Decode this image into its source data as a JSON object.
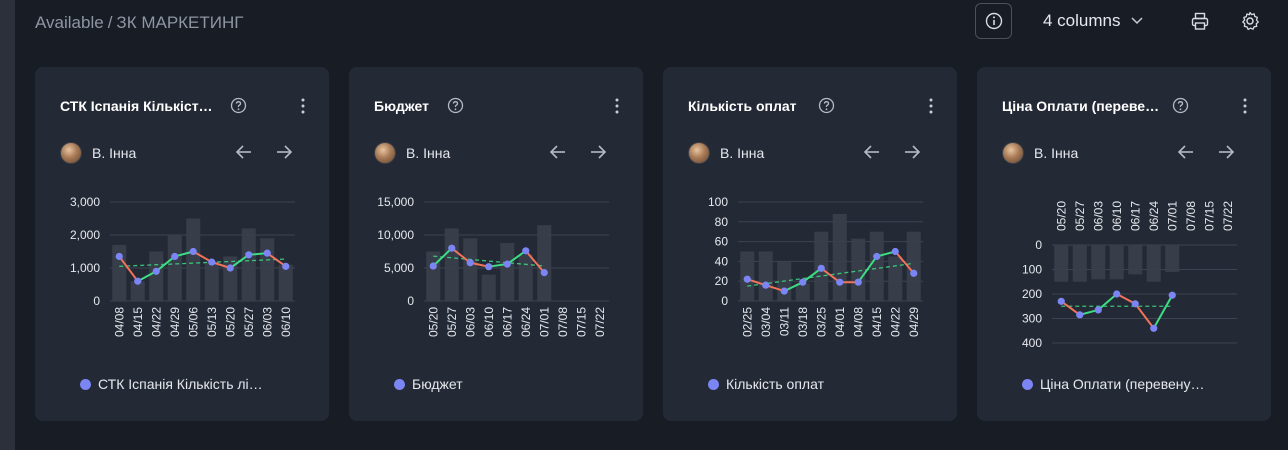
{
  "breadcrumb": {
    "parent": "Available",
    "separator": "/",
    "current": "ЗК МАРКЕТИНГ"
  },
  "toolbar": {
    "columns_label": "4 columns"
  },
  "colors": {
    "background": "#181c25",
    "card": "#242a35",
    "up": "#3ddc84",
    "down": "#f0735a",
    "point": "#7b86f4",
    "bar": "#3a3f4b",
    "grid": "#3d4350"
  },
  "cards": [
    {
      "title": "СТК Іспанія Кількість лі…",
      "author": "В. Інна",
      "legend": "СТК Іспанія Кількість лі…",
      "chart_data": {
        "type": "line",
        "categories": [
          "04/08",
          "04/15",
          "04/22",
          "04/29",
          "05/06",
          "05/13",
          "05/20",
          "05/27",
          "06/03",
          "06/10"
        ],
        "series": [
          {
            "name": "СТК Іспанія Кількість лі…",
            "values": [
              1350,
              600,
              900,
              1350,
              1500,
              1180,
              1000,
              1400,
              1450,
              1050
            ]
          }
        ],
        "bars": [
          1700,
          600,
          1500,
          2000,
          2500,
          1200,
          1350,
          2200,
          1900,
          1100
        ],
        "trend": [
          1050,
          1270
        ],
        "y_ticks": [
          "3,000",
          "2,000",
          "1,000",
          "0"
        ],
        "ylim": [
          0,
          3000
        ]
      }
    },
    {
      "title": "Бюджет",
      "author": "В. Інна",
      "legend": "Бюджет",
      "chart_data": {
        "type": "line",
        "categories": [
          "05/20",
          "05/27",
          "06/03",
          "06/10",
          "06/17",
          "06/24",
          "07/01",
          "07/08",
          "07/15",
          "07/22"
        ],
        "series": [
          {
            "name": "Бюджет",
            "values": [
              5300,
              8000,
              5800,
              5200,
              5600,
              7600,
              4300,
              null,
              null,
              null
            ]
          }
        ],
        "bars": [
          7500,
          11000,
          9500,
          4000,
          8800,
          7000,
          11500,
          null,
          null,
          null
        ],
        "trend": [
          6800,
          5300
        ],
        "trend_span": [
          0,
          6
        ],
        "y_ticks": [
          "15,000",
          "10,000",
          "5,000",
          "0"
        ],
        "ylim": [
          0,
          15000
        ]
      }
    },
    {
      "title": "Кількість оплат",
      "author": "В. Інна",
      "legend": "Кількість оплат",
      "chart_data": {
        "type": "line",
        "categories": [
          "02/25",
          "03/04",
          "03/11",
          "03/18",
          "03/25",
          "04/01",
          "04/08",
          "04/15",
          "04/22",
          "04/29"
        ],
        "series": [
          {
            "name": "Кількість оплат",
            "values": [
              22,
              16,
              10,
              19,
              33,
              19,
              19,
              45,
              50,
              28
            ]
          }
        ],
        "bars": [
          50,
          50,
          40,
          18,
          70,
          88,
          63,
          70,
          45,
          70
        ],
        "trend": [
          15,
          38
        ],
        "y_ticks": [
          "100",
          "80",
          "60",
          "40",
          "20",
          "0"
        ],
        "ylim": [
          0,
          100
        ]
      }
    },
    {
      "title": "Ціна Оплати (перевер…",
      "author": "В. Інна",
      "legend": "Ціна Оплати (перевену…",
      "chart_data": {
        "type": "line",
        "reversed_y": true,
        "x_axis_position": "top",
        "categories": [
          "05/20",
          "05/27",
          "06/03",
          "06/10",
          "06/17",
          "06/24",
          "07/01",
          "07/08",
          "07/15",
          "07/22"
        ],
        "series": [
          {
            "name": "Ціна Оплати (перевену…",
            "values": [
              230,
              285,
              265,
              200,
              240,
              340,
              205,
              null,
              null,
              null
            ]
          }
        ],
        "bars": [
          150,
          150,
          140,
          140,
          120,
          150,
          110,
          null,
          null,
          null
        ],
        "trend": [
          250,
          250
        ],
        "trend_span": [
          0,
          6
        ],
        "y_ticks": [
          "0",
          "100",
          "200",
          "300",
          "400"
        ],
        "ylim": [
          0,
          400
        ]
      }
    }
  ]
}
